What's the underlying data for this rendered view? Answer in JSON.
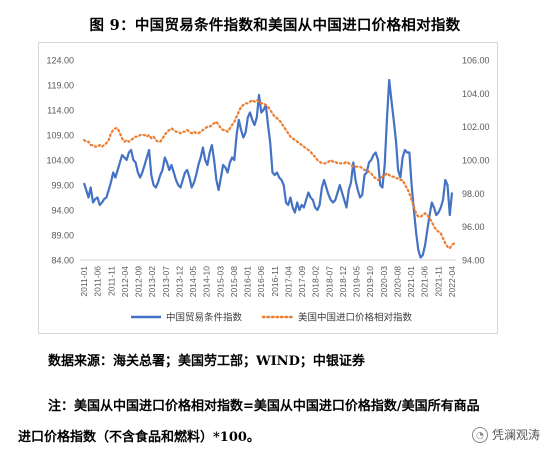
{
  "title": "图 9：中国贸易条件指数和美国从中国进口价格相对指数",
  "source_text": "数据来源：海关总署；美国劳工部；WIND；中银证券",
  "note_line1": "注：美国从中国进口价格相对指数=美国从中国进口价格指数/美国所有商品",
  "note_line2": "进口价格指数（不含食品和燃料）*100。",
  "watermark": "凭澜观涛",
  "colors": {
    "series1": "#4472C4",
    "series2": "#ED7D31"
  },
  "chart_data": {
    "type": "line",
    "x_tick_labels": [
      "2011-01",
      "2011-06",
      "2011-11",
      "2012-04",
      "2012-09",
      "2013-02",
      "2013-07",
      "2013-12",
      "2014-05",
      "2014-10",
      "2015-03",
      "2015-08",
      "2016-01",
      "2016-06",
      "2016-11",
      "2017-04",
      "2017-09",
      "2018-02",
      "2018-07",
      "2018-12",
      "2019-05",
      "2019-10",
      "2020-03",
      "2020-08",
      "2021-01",
      "2021-06",
      "2021-11",
      "2022-04"
    ],
    "y_left": {
      "min": 84,
      "max": 124,
      "ticks": [
        "84.00",
        "89.00",
        "94.00",
        "99.00",
        "104.00",
        "109.00",
        "114.00",
        "119.00",
        "124.00"
      ]
    },
    "y_right": {
      "min": 94,
      "max": 106,
      "ticks": [
        "94.00",
        "96.00",
        "98.00",
        "100.00",
        "102.00",
        "104.00",
        "106.00"
      ]
    },
    "series": [
      {
        "name": "中国贸易条件指数",
        "axis": "left",
        "values": [
          99.4,
          98.0,
          96.5,
          98.5,
          95.5,
          96.2,
          96.5,
          95.0,
          95.5,
          96.2,
          96.5,
          98.0,
          99.5,
          101.5,
          100.5,
          102.0,
          103.5,
          105.0,
          104.5,
          104.0,
          105.5,
          106.0,
          104.0,
          103.5,
          101.5,
          100.5,
          101.5,
          103.0,
          104.5,
          106.0,
          101.0,
          99.0,
          98.5,
          99.5,
          101.0,
          102.0,
          104.5,
          103.5,
          102.0,
          103.0,
          101.5,
          100.0,
          99.0,
          98.5,
          100.0,
          101.5,
          102.0,
          100.5,
          98.5,
          99.5,
          101.0,
          103.0,
          104.5,
          106.5,
          104.0,
          103.0,
          105.5,
          107.0,
          104.0,
          100.0,
          98.0,
          100.5,
          103.0,
          102.5,
          101.5,
          103.5,
          104.5,
          104.0,
          109.0,
          112.0,
          110.0,
          108.5,
          109.5,
          112.5,
          113.5,
          112.0,
          111.0,
          112.5,
          117.0,
          113.5,
          114.0,
          115.0,
          111.0,
          107.5,
          101.5,
          101.0,
          101.5,
          100.5,
          100.0,
          99.0,
          95.5,
          95.0,
          96.5,
          94.5,
          93.5,
          95.5,
          94.0,
          95.0,
          94.5,
          96.0,
          97.5,
          96.5,
          96.0,
          94.5,
          94.0,
          95.0,
          98.5,
          100.0,
          98.5,
          97.0,
          96.0,
          95.5,
          96.0,
          97.5,
          99.0,
          97.5,
          96.0,
          94.5,
          98.0,
          99.5,
          103.5,
          100.0,
          98.0,
          96.5,
          97.0,
          101.0,
          101.5,
          103.5,
          104.0,
          105.0,
          105.5,
          104.0,
          99.0,
          98.5,
          103.0,
          112.0,
          120.0,
          116.0,
          112.0,
          108.0,
          102.0,
          100.5,
          104.5,
          106.0,
          105.5,
          105.5,
          99.0,
          94.0,
          89.5,
          86.0,
          84.5,
          85.0,
          87.0,
          90.0,
          93.0,
          95.5,
          94.5,
          93.0,
          93.5,
          94.5,
          96.0,
          100.0,
          99.0,
          93.0,
          97.5
        ]
      },
      {
        "name": "美国中国进口价格相对指数",
        "axis": "right",
        "values": [
          101.2,
          101.1,
          101.1,
          100.9,
          100.9,
          100.8,
          100.8,
          100.9,
          100.8,
          100.9,
          101.0,
          101.2,
          101.6,
          101.8,
          101.9,
          101.9,
          101.6,
          101.3,
          101.1,
          101.2,
          101.1,
          101.2,
          101.3,
          101.4,
          101.4,
          101.5,
          101.5,
          101.5,
          101.4,
          101.5,
          101.3,
          101.4,
          101.2,
          101.1,
          101.1,
          101.3,
          101.5,
          101.7,
          101.8,
          101.9,
          101.8,
          101.7,
          101.7,
          101.6,
          101.7,
          101.7,
          101.8,
          101.7,
          101.6,
          101.7,
          101.6,
          101.6,
          101.7,
          101.8,
          101.9,
          102.0,
          102.0,
          102.1,
          102.2,
          102.3,
          102.1,
          101.9,
          101.8,
          101.8,
          101.7,
          101.9,
          102.1,
          102.3,
          102.6,
          102.9,
          103.2,
          103.3,
          103.4,
          103.4,
          103.5,
          103.6,
          103.5,
          103.6,
          103.5,
          103.4,
          103.4,
          103.3,
          103.2,
          103.0,
          102.8,
          102.6,
          102.5,
          102.4,
          102.2,
          102.0,
          101.8,
          101.6,
          101.4,
          101.3,
          101.2,
          101.1,
          101.0,
          100.9,
          100.8,
          100.7,
          100.6,
          100.5,
          100.3,
          100.2,
          100.0,
          99.9,
          99.8,
          99.8,
          99.8,
          99.9,
          100.0,
          99.9,
          99.9,
          99.8,
          99.8,
          99.8,
          99.8,
          99.9,
          99.8,
          99.7,
          99.6,
          99.6,
          99.6,
          99.6,
          99.5,
          99.4,
          99.4,
          99.3,
          99.2,
          99.0,
          98.9,
          98.8,
          98.9,
          99.0,
          99.1,
          99.2,
          99.1,
          99.0,
          99.0,
          98.9,
          98.9,
          98.8,
          98.8,
          98.5,
          98.3,
          98.0,
          97.6,
          97.2,
          96.8,
          96.6,
          96.6,
          96.7,
          96.8,
          96.7,
          96.5,
          96.3,
          96.0,
          95.8,
          95.7,
          95.6,
          95.3,
          95.0,
          94.8,
          94.7,
          94.9,
          95.0
        ]
      }
    ],
    "legend_position": "bottom",
    "grid": false
  }
}
